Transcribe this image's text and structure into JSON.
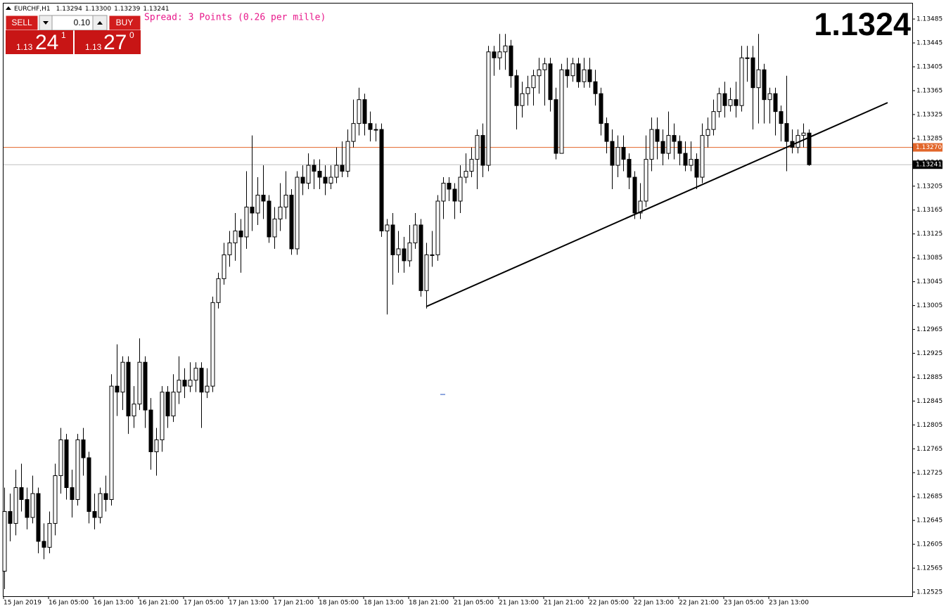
{
  "header": {
    "symbol": "EURCHF,H1",
    "ohlc_labels": [
      "1.13294",
      "1.13300",
      "1.13239",
      "1.13241"
    ],
    "spread": "Spread: 3 Points (0.26 per mille)",
    "big_price": "1.1324"
  },
  "trade_panel": {
    "sell": "SELL",
    "buy": "BUY",
    "lots": "0.10",
    "bid": {
      "prefix": "1.13",
      "main": "24",
      "sup": "1"
    },
    "ask": {
      "prefix": "1.13",
      "main": "27",
      "sup": "0"
    }
  },
  "chart_data": {
    "type": "candlestick",
    "bull_color": "#ffffff",
    "bear_color": "#000000",
    "ylim": [
      1.12518,
      1.13511
    ],
    "yticks": [
      1.13485,
      1.13445,
      1.13405,
      1.13365,
      1.13325,
      1.13285,
      1.13245,
      1.13205,
      1.13165,
      1.13125,
      1.13085,
      1.13045,
      1.13005,
      1.12965,
      1.12925,
      1.12885,
      1.12845,
      1.12805,
      1.12765,
      1.12725,
      1.12685,
      1.12645,
      1.12605,
      1.12565,
      1.12525
    ],
    "price_lines": [
      {
        "value": 1.1327,
        "label": "1.13270",
        "color": "#e2662a"
      },
      {
        "value": 1.13241,
        "label": "1.13241",
        "color": "#c0c0c0"
      }
    ],
    "categories": [
      "15 Jan 2019",
      null,
      null,
      null,
      null,
      null,
      null,
      null,
      "16 Jan 05:00",
      null,
      null,
      null,
      null,
      null,
      null,
      null,
      "16 Jan 13:00",
      null,
      null,
      null,
      null,
      null,
      null,
      null,
      "16 Jan 21:00",
      null,
      null,
      null,
      null,
      null,
      null,
      null,
      "17 Jan 05:00",
      null,
      null,
      null,
      null,
      null,
      null,
      null,
      "17 Jan 13:00",
      null,
      null,
      null,
      null,
      null,
      null,
      null,
      "17 Jan 21:00",
      null,
      null,
      null,
      null,
      null,
      null,
      null,
      "18 Jan 05:00",
      null,
      null,
      null,
      null,
      null,
      null,
      null,
      "18 Jan 13:00",
      null,
      null,
      null,
      null,
      null,
      null,
      null,
      "18 Jan 21:00",
      null,
      null,
      null,
      null,
      null,
      null,
      null,
      "21 Jan 05:00",
      null,
      null,
      null,
      null,
      null,
      null,
      null,
      "21 Jan 13:00",
      null,
      null,
      null,
      null,
      null,
      null,
      null,
      "21 Jan 21:00",
      null,
      null,
      null,
      null,
      null,
      null,
      null,
      "22 Jan 05:00",
      null,
      null,
      null,
      null,
      null,
      null,
      null,
      "22 Jan 13:00",
      null,
      null,
      null,
      null,
      null,
      null,
      null,
      "22 Jan 21:00",
      null,
      null,
      null,
      null,
      null,
      null,
      null,
      "23 Jan 05:00",
      null,
      null,
      null,
      null,
      null,
      null,
      null,
      "23 Jan 13:00",
      null,
      null,
      null,
      null,
      null,
      null,
      null
    ],
    "ohlc": [
      [
        1.1256,
        1.127,
        1.1253,
        1.1266
      ],
      [
        1.1266,
        1.1269,
        1.1261,
        1.1264
      ],
      [
        1.1264,
        1.1273,
        1.1262,
        1.127
      ],
      [
        1.127,
        1.1274,
        1.1266,
        1.1268
      ],
      [
        1.1268,
        1.127,
        1.1263,
        1.1265
      ],
      [
        1.1265,
        1.1272,
        1.1264,
        1.1269
      ],
      [
        1.1269,
        1.127,
        1.1259,
        1.1261
      ],
      [
        1.1261,
        1.1264,
        1.1258,
        1.126
      ],
      [
        1.126,
        1.1266,
        1.1259,
        1.1264
      ],
      [
        1.1264,
        1.1274,
        1.1262,
        1.1272
      ],
      [
        1.1272,
        1.128,
        1.1269,
        1.1278
      ],
      [
        1.1278,
        1.1279,
        1.1268,
        1.127
      ],
      [
        1.127,
        1.1273,
        1.1265,
        1.1268
      ],
      [
        1.1268,
        1.1279,
        1.1267,
        1.1278
      ],
      [
        1.1278,
        1.128,
        1.1272,
        1.1275
      ],
      [
        1.1275,
        1.1276,
        1.1264,
        1.1266
      ],
      [
        1.1266,
        1.1269,
        1.1263,
        1.1265
      ],
      [
        1.1265,
        1.127,
        1.1264,
        1.1269
      ],
      [
        1.1269,
        1.1272,
        1.1266,
        1.1268
      ],
      [
        1.1268,
        1.1289,
        1.1267,
        1.1287
      ],
      [
        1.1287,
        1.1294,
        1.1282,
        1.1286
      ],
      [
        1.1286,
        1.1292,
        1.1283,
        1.1291
      ],
      [
        1.1291,
        1.1292,
        1.1279,
        1.1282
      ],
      [
        1.1282,
        1.1287,
        1.128,
        1.1284
      ],
      [
        1.1284,
        1.1295,
        1.1283,
        1.1291
      ],
      [
        1.1291,
        1.1292,
        1.128,
        1.1283
      ],
      [
        1.1283,
        1.1285,
        1.1273,
        1.1276
      ],
      [
        1.1276,
        1.128,
        1.1272,
        1.1278
      ],
      [
        1.1278,
        1.1287,
        1.1276,
        1.1286
      ],
      [
        1.1286,
        1.1287,
        1.128,
        1.1282
      ],
      [
        1.1282,
        1.1289,
        1.1281,
        1.1286
      ],
      [
        1.1286,
        1.1292,
        1.1284,
        1.1288
      ],
      [
        1.1288,
        1.129,
        1.1285,
        1.1287
      ],
      [
        1.1287,
        1.1291,
        1.1286,
        1.1288
      ],
      [
        1.1288,
        1.1291,
        1.1286,
        1.129
      ],
      [
        1.129,
        1.1291,
        1.128,
        1.1286
      ],
      [
        1.1286,
        1.129,
        1.1285,
        1.1287
      ],
      [
        1.1287,
        1.1302,
        1.1286,
        1.1301
      ],
      [
        1.1301,
        1.1306,
        1.13,
        1.1305
      ],
      [
        1.1305,
        1.1311,
        1.1304,
        1.1309
      ],
      [
        1.1309,
        1.1313,
        1.1307,
        1.1311
      ],
      [
        1.1311,
        1.1316,
        1.1308,
        1.1313
      ],
      [
        1.1313,
        1.1315,
        1.1306,
        1.1312
      ],
      [
        1.1312,
        1.1323,
        1.131,
        1.1317
      ],
      [
        1.1317,
        1.1329,
        1.1313,
        1.1316
      ],
      [
        1.1316,
        1.1322,
        1.1314,
        1.1319
      ],
      [
        1.1319,
        1.1324,
        1.1315,
        1.1318
      ],
      [
        1.1318,
        1.1319,
        1.1311,
        1.1312
      ],
      [
        1.1312,
        1.1317,
        1.131,
        1.1315
      ],
      [
        1.1315,
        1.1321,
        1.1313,
        1.1317
      ],
      [
        1.1317,
        1.1323,
        1.1315,
        1.1319
      ],
      [
        1.1319,
        1.132,
        1.1309,
        1.131
      ],
      [
        1.131,
        1.1323,
        1.1309,
        1.1322
      ],
      [
        1.1322,
        1.1324,
        1.1319,
        1.1321
      ],
      [
        1.1321,
        1.1326,
        1.132,
        1.1324
      ],
      [
        1.1324,
        1.1325,
        1.132,
        1.1323
      ],
      [
        1.1323,
        1.1325,
        1.132,
        1.1322
      ],
      [
        1.1322,
        1.1324,
        1.1319,
        1.1321
      ],
      [
        1.1321,
        1.1324,
        1.132,
        1.1322
      ],
      [
        1.1322,
        1.1327,
        1.1321,
        1.1324
      ],
      [
        1.1324,
        1.1328,
        1.1322,
        1.1323
      ],
      [
        1.1323,
        1.133,
        1.1322,
        1.1328
      ],
      [
        1.1328,
        1.1335,
        1.1327,
        1.1331
      ],
      [
        1.1331,
        1.1337,
        1.1329,
        1.1335
      ],
      [
        1.1335,
        1.1336,
        1.1329,
        1.1331
      ],
      [
        1.1331,
        1.1333,
        1.1328,
        1.133
      ],
      [
        1.133,
        1.1331,
        1.1328,
        1.133
      ],
      [
        1.133,
        1.1331,
        1.1312,
        1.1313
      ],
      [
        1.1313,
        1.1315,
        1.1299,
        1.1314
      ],
      [
        1.1314,
        1.1316,
        1.1304,
        1.1309
      ],
      [
        1.1309,
        1.1313,
        1.1306,
        1.131
      ],
      [
        1.131,
        1.1312,
        1.1306,
        1.1308
      ],
      [
        1.1308,
        1.1314,
        1.1307,
        1.1311
      ],
      [
        1.1311,
        1.1316,
        1.131,
        1.1314
      ],
      [
        1.1314,
        1.1315,
        1.1302,
        1.1303
      ],
      [
        1.1303,
        1.1311,
        1.13,
        1.1309
      ],
      [
        1.1309,
        1.1313,
        1.1307,
        1.1309
      ],
      [
        1.1309,
        1.1319,
        1.1308,
        1.1318
      ],
      [
        1.1318,
        1.1322,
        1.1315,
        1.1321
      ],
      [
        1.1321,
        1.1322,
        1.1318,
        1.132
      ],
      [
        1.132,
        1.1321,
        1.1315,
        1.1318
      ],
      [
        1.1318,
        1.1324,
        1.1316,
        1.1322
      ],
      [
        1.1322,
        1.1326,
        1.1321,
        1.1323
      ],
      [
        1.1323,
        1.1327,
        1.1322,
        1.1325
      ],
      [
        1.1325,
        1.133,
        1.132,
        1.1329
      ],
      [
        1.1329,
        1.1331,
        1.1322,
        1.1324
      ],
      [
        1.1324,
        1.1344,
        1.1323,
        1.1343
      ],
      [
        1.1343,
        1.1344,
        1.1339,
        1.1342
      ],
      [
        1.1342,
        1.1346,
        1.134,
        1.1343
      ],
      [
        1.1343,
        1.1346,
        1.134,
        1.1344
      ],
      [
        1.1344,
        1.1345,
        1.1337,
        1.1339
      ],
      [
        1.1339,
        1.134,
        1.133,
        1.1334
      ],
      [
        1.1334,
        1.1338,
        1.1332,
        1.1336
      ],
      [
        1.1336,
        1.1339,
        1.1334,
        1.1337
      ],
      [
        1.1337,
        1.134,
        1.1334,
        1.1339
      ],
      [
        1.1339,
        1.1342,
        1.1336,
        1.134
      ],
      [
        1.134,
        1.1342,
        1.1334,
        1.1341
      ],
      [
        1.1341,
        1.1342,
        1.1333,
        1.1335
      ],
      [
        1.1335,
        1.1337,
        1.1325,
        1.1326
      ],
      [
        1.1326,
        1.1341,
        1.1326,
        1.134
      ],
      [
        1.134,
        1.1342,
        1.1337,
        1.1339
      ],
      [
        1.1339,
        1.1342,
        1.1338,
        1.1341
      ],
      [
        1.1341,
        1.1342,
        1.1337,
        1.1338
      ],
      [
        1.1338,
        1.1342,
        1.1337,
        1.134
      ],
      [
        1.134,
        1.1342,
        1.1337,
        1.1338
      ],
      [
        1.1338,
        1.134,
        1.1334,
        1.1336
      ],
      [
        1.1336,
        1.1337,
        1.1329,
        1.1331
      ],
      [
        1.1331,
        1.1332,
        1.1326,
        1.1328
      ],
      [
        1.1328,
        1.133,
        1.132,
        1.1324
      ],
      [
        1.1324,
        1.1329,
        1.1322,
        1.1327
      ],
      [
        1.1327,
        1.1329,
        1.1323,
        1.1325
      ],
      [
        1.1325,
        1.1326,
        1.132,
        1.1322
      ],
      [
        1.1322,
        1.1323,
        1.1315,
        1.1316
      ],
      [
        1.1316,
        1.1321,
        1.1315,
        1.1318
      ],
      [
        1.1318,
        1.1329,
        1.1317,
        1.1325
      ],
      [
        1.1325,
        1.1332,
        1.1323,
        1.133
      ],
      [
        1.133,
        1.1332,
        1.1325,
        1.1328
      ],
      [
        1.1328,
        1.133,
        1.1324,
        1.1326
      ],
      [
        1.1326,
        1.1333,
        1.1325,
        1.1329
      ],
      [
        1.1329,
        1.1331,
        1.1325,
        1.1328
      ],
      [
        1.1328,
        1.1329,
        1.1324,
        1.1326
      ],
      [
        1.1326,
        1.1328,
        1.1323,
        1.1324
      ],
      [
        1.1324,
        1.1328,
        1.1323,
        1.1325
      ],
      [
        1.1325,
        1.1326,
        1.132,
        1.1322
      ],
      [
        1.1322,
        1.1331,
        1.1321,
        1.1329
      ],
      [
        1.1329,
        1.1332,
        1.1327,
        1.133
      ],
      [
        1.133,
        1.1335,
        1.1329,
        1.1333
      ],
      [
        1.1333,
        1.1337,
        1.1332,
        1.1336
      ],
      [
        1.1336,
        1.1338,
        1.1332,
        1.1334
      ],
      [
        1.1334,
        1.1337,
        1.1333,
        1.1335
      ],
      [
        1.1335,
        1.1338,
        1.1332,
        1.1334
      ],
      [
        1.1334,
        1.1344,
        1.1333,
        1.1342
      ],
      [
        1.1342,
        1.1344,
        1.1338,
        1.1342
      ],
      [
        1.1342,
        1.1344,
        1.133,
        1.1337
      ],
      [
        1.1337,
        1.1346,
        1.1331,
        1.134
      ],
      [
        1.134,
        1.1341,
        1.1331,
        1.1335
      ],
      [
        1.1335,
        1.1337,
        1.1331,
        1.1336
      ],
      [
        1.1336,
        1.1337,
        1.1329,
        1.1333
      ],
      [
        1.1333,
        1.1334,
        1.1328,
        1.1331
      ],
      [
        1.1331,
        1.1339,
        1.1323,
        1.1328
      ],
      [
        1.1328,
        1.133,
        1.1326,
        1.1327
      ],
      [
        1.1327,
        1.133,
        1.1326,
        1.1329
      ],
      [
        1.1329,
        1.1331,
        1.1327,
        1.13294
      ],
      [
        1.13294,
        1.133,
        1.13239,
        1.13241
      ]
    ]
  }
}
